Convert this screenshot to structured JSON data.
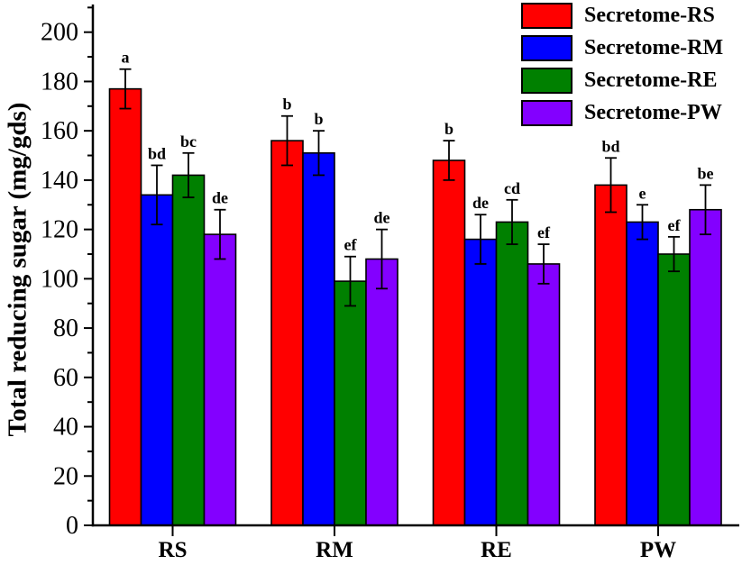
{
  "chart_data": {
    "type": "bar",
    "title": "",
    "xlabel": "",
    "ylabel": "Total reducing sugar (mg/gds)",
    "ylim": [
      0,
      211
    ],
    "y_tick_labels": [
      "0",
      "20",
      "40",
      "60",
      "80",
      "100",
      "120",
      "140",
      "160",
      "180",
      "200"
    ],
    "y_major_step": 20,
    "y_minor_step": 10,
    "grid": false,
    "legend_position": "top-right-inside",
    "categories": [
      "RS",
      "RM",
      "RE",
      "PW"
    ],
    "series": [
      {
        "name": "Secretome-RS",
        "color": "#FF0000",
        "values": [
          177,
          156,
          148,
          138
        ],
        "errors": [
          8,
          10,
          8,
          11
        ],
        "letters": [
          "a",
          "b",
          "b",
          "bd"
        ]
      },
      {
        "name": "Secretome-RM",
        "color": "#0000FF",
        "values": [
          134,
          151,
          116,
          123
        ],
        "errors": [
          12,
          9,
          10,
          7
        ],
        "letters": [
          "bd",
          "b",
          "de",
          "e"
        ]
      },
      {
        "name": "Secretome-RE",
        "color": "#008000",
        "values": [
          142,
          99,
          123,
          110
        ],
        "errors": [
          9,
          10,
          9,
          7
        ],
        "letters": [
          "bc",
          "ef",
          "cd",
          "ef"
        ]
      },
      {
        "name": "Secretome-PW",
        "color": "#8300FF",
        "values": [
          118,
          108,
          106,
          128
        ],
        "errors": [
          10,
          12,
          8,
          10
        ],
        "letters": [
          "de",
          "de",
          "ef",
          "be"
        ]
      }
    ]
  }
}
